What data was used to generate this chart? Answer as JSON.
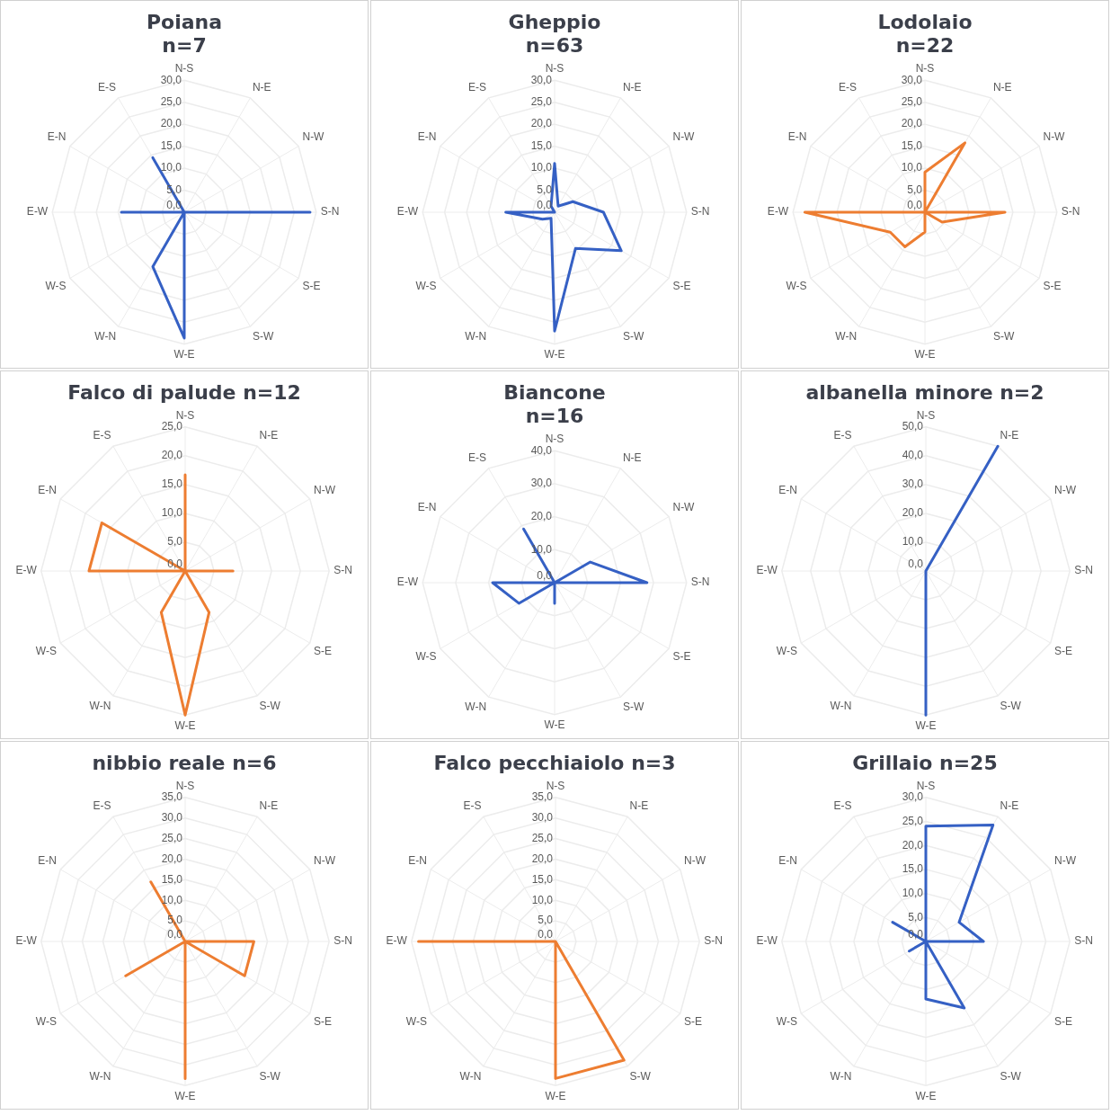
{
  "chart_data": [
    {
      "type": "radar",
      "title": "Poiana\nn=7",
      "categories": [
        "N-S",
        "N-E",
        "N-W",
        "S-N",
        "S-E",
        "S-W",
        "W-E",
        "W-N",
        "W-S",
        "E-W",
        "E-N",
        "E-S"
      ],
      "series": [
        {
          "color": "#3560c4",
          "values": [
            0,
            0,
            0,
            28.6,
            0,
            0,
            28.6,
            14.3,
            0,
            14.3,
            0,
            14.3
          ]
        }
      ],
      "ylim": [
        0,
        30
      ],
      "yticks": [
        {
          "value": 0,
          "label": "0,0"
        },
        {
          "value": 5,
          "label": "5,0"
        },
        {
          "value": 10,
          "label": "10,0"
        },
        {
          "value": 15,
          "label": "15,0"
        },
        {
          "value": 20,
          "label": "20,0"
        },
        {
          "value": 25,
          "label": "25,0"
        },
        {
          "value": 30,
          "label": "30,0"
        }
      ],
      "grid": true,
      "legend": false,
      "marker": "none"
    },
    {
      "type": "radar",
      "title": "Gheppio\nn=63",
      "categories": [
        "N-S",
        "N-E",
        "N-W",
        "S-N",
        "S-E",
        "S-W",
        "W-E",
        "W-N",
        "W-S",
        "E-W",
        "E-N",
        "E-S"
      ],
      "series": [
        {
          "color": "#3560c4",
          "values": [
            11.1,
            1.6,
            4.8,
            11.1,
            17.5,
            9.5,
            27,
            1.6,
            3.2,
            11.1,
            0,
            1.6
          ]
        }
      ],
      "ylim": [
        0,
        30
      ],
      "yticks": [
        {
          "value": 0,
          "label": "0,0"
        },
        {
          "value": 5,
          "label": "5,0"
        },
        {
          "value": 10,
          "label": "10,0"
        },
        {
          "value": 15,
          "label": "15,0"
        },
        {
          "value": 20,
          "label": "20,0"
        },
        {
          "value": 25,
          "label": "25,0"
        },
        {
          "value": 30,
          "label": "30,0"
        }
      ],
      "grid": true,
      "legend": false,
      "marker": "none"
    },
    {
      "type": "radar",
      "title": "Lodolaio\nn=22",
      "categories": [
        "N-S",
        "N-E",
        "N-W",
        "S-N",
        "S-E",
        "S-W",
        "W-E",
        "W-N",
        "W-S",
        "E-W",
        "E-N",
        "E-S"
      ],
      "series": [
        {
          "color": "#ed7d31",
          "values": [
            9.1,
            18.2,
            0,
            18.2,
            4.5,
            0,
            4.5,
            9.1,
            9.1,
            27.3,
            0,
            0
          ]
        }
      ],
      "ylim": [
        0,
        30
      ],
      "yticks": [
        {
          "value": 0,
          "label": "0,0"
        },
        {
          "value": 5,
          "label": "5,0"
        },
        {
          "value": 10,
          "label": "10,0"
        },
        {
          "value": 15,
          "label": "15,0"
        },
        {
          "value": 20,
          "label": "20,0"
        },
        {
          "value": 25,
          "label": "25,0"
        },
        {
          "value": 30,
          "label": "30,0"
        }
      ],
      "grid": true,
      "legend": false,
      "marker": "none"
    },
    {
      "type": "radar",
      "title": "Falco di palude n=12",
      "categories": [
        "N-S",
        "N-E",
        "N-W",
        "S-N",
        "S-E",
        "S-W",
        "W-E",
        "W-N",
        "W-S",
        "E-W",
        "E-N",
        "E-S"
      ],
      "series": [
        {
          "color": "#ed7d31",
          "values": [
            16.7,
            0,
            0,
            8.3,
            0,
            8.3,
            25,
            8.3,
            0,
            16.7,
            16.7,
            0
          ]
        }
      ],
      "ylim": [
        0,
        25
      ],
      "yticks": [
        {
          "value": 0,
          "label": "0,0"
        },
        {
          "value": 5,
          "label": "5,0"
        },
        {
          "value": 10,
          "label": "10,0"
        },
        {
          "value": 15,
          "label": "15,0"
        },
        {
          "value": 20,
          "label": "20,0"
        },
        {
          "value": 25,
          "label": "25,0"
        }
      ],
      "grid": true,
      "legend": false,
      "marker": "none"
    },
    {
      "type": "radar",
      "title": "Biancone\nn=16",
      "categories": [
        "N-S",
        "N-E",
        "N-W",
        "S-N",
        "S-E",
        "S-W",
        "W-E",
        "W-N",
        "W-S",
        "E-W",
        "E-N",
        "E-S"
      ],
      "series": [
        {
          "color": "#3560c4",
          "values": [
            0,
            0,
            12.5,
            28,
            0,
            0,
            6.3,
            0,
            12.5,
            18.8,
            0,
            18.8
          ]
        }
      ],
      "ylim": [
        0,
        40
      ],
      "yticks": [
        {
          "value": 0,
          "label": "0,0"
        },
        {
          "value": 10,
          "label": "10,0"
        },
        {
          "value": 20,
          "label": "20,0"
        },
        {
          "value": 30,
          "label": "30,0"
        },
        {
          "value": 40,
          "label": "40,0"
        }
      ],
      "grid": true,
      "legend": false,
      "marker": "none"
    },
    {
      "type": "radar",
      "title": "albanella minore n=2",
      "categories": [
        "N-S",
        "N-E",
        "N-W",
        "S-N",
        "S-E",
        "S-W",
        "W-E",
        "W-N",
        "W-S",
        "E-W",
        "E-N",
        "E-S"
      ],
      "series": [
        {
          "color": "#3560c4",
          "values": [
            0,
            50,
            0,
            0,
            0,
            0,
            50,
            0,
            0,
            0,
            0,
            0
          ]
        }
      ],
      "ylim": [
        0,
        50
      ],
      "yticks": [
        {
          "value": 0,
          "label": "0,0"
        },
        {
          "value": 10,
          "label": "10,0"
        },
        {
          "value": 20,
          "label": "20,0"
        },
        {
          "value": 30,
          "label": "30,0"
        },
        {
          "value": 40,
          "label": "40,0"
        },
        {
          "value": 50,
          "label": "50,0"
        }
      ],
      "grid": true,
      "legend": false,
      "marker": "none"
    },
    {
      "type": "radar",
      "title": "nibbio reale n=6",
      "categories": [
        "N-S",
        "N-E",
        "N-W",
        "S-N",
        "S-E",
        "S-W",
        "W-E",
        "W-N",
        "W-S",
        "E-W",
        "E-N",
        "E-S"
      ],
      "series": [
        {
          "color": "#ed7d31",
          "values": [
            0,
            0,
            0,
            16.7,
            16.7,
            0,
            33.3,
            0,
            16.7,
            0,
            0,
            16.7
          ]
        }
      ],
      "ylim": [
        0,
        35
      ],
      "yticks": [
        {
          "value": 0,
          "label": "0,0"
        },
        {
          "value": 5,
          "label": "5,0"
        },
        {
          "value": 10,
          "label": "10,0"
        },
        {
          "value": 15,
          "label": "15,0"
        },
        {
          "value": 20,
          "label": "20,0"
        },
        {
          "value": 25,
          "label": "25,0"
        },
        {
          "value": 30,
          "label": "30,0"
        },
        {
          "value": 35,
          "label": "35,0"
        }
      ],
      "grid": true,
      "legend": false,
      "marker": "none"
    },
    {
      "type": "radar",
      "title": "Falco pecchiaiolo n=3",
      "categories": [
        "N-S",
        "N-E",
        "N-W",
        "S-N",
        "S-E",
        "S-W",
        "W-E",
        "W-N",
        "W-S",
        "E-W",
        "E-N",
        "E-S"
      ],
      "series": [
        {
          "color": "#ed7d31",
          "values": [
            0,
            0,
            0,
            0,
            0,
            33.3,
            33.3,
            0,
            0,
            33.3,
            0,
            0
          ]
        }
      ],
      "ylim": [
        0,
        35
      ],
      "yticks": [
        {
          "value": 0,
          "label": "0,0"
        },
        {
          "value": 5,
          "label": "5,0"
        },
        {
          "value": 10,
          "label": "10,0"
        },
        {
          "value": 15,
          "label": "15,0"
        },
        {
          "value": 20,
          "label": "20,0"
        },
        {
          "value": 25,
          "label": "25,0"
        },
        {
          "value": 30,
          "label": "30,0"
        },
        {
          "value": 35,
          "label": "35,0"
        }
      ],
      "grid": true,
      "legend": false,
      "marker": "none"
    },
    {
      "type": "radar",
      "title": "Grillaio n=25",
      "categories": [
        "N-S",
        "N-E",
        "N-W",
        "S-N",
        "S-E",
        "S-W",
        "W-E",
        "W-N",
        "W-S",
        "E-W",
        "E-N",
        "E-S"
      ],
      "series": [
        {
          "color": "#3560c4",
          "values": [
            24,
            28,
            8,
            12,
            0,
            16,
            12,
            0,
            4,
            0,
            8,
            0
          ]
        }
      ],
      "ylim": [
        0,
        30
      ],
      "yticks": [
        {
          "value": 0,
          "label": "0,0"
        },
        {
          "value": 5,
          "label": "5,0"
        },
        {
          "value": 10,
          "label": "10,0"
        },
        {
          "value": 15,
          "label": "15,0"
        },
        {
          "value": 20,
          "label": "20,0"
        },
        {
          "value": 25,
          "label": "25,0"
        },
        {
          "value": 30,
          "label": "30,0"
        }
      ],
      "grid": true,
      "legend": false,
      "marker": "none"
    }
  ]
}
